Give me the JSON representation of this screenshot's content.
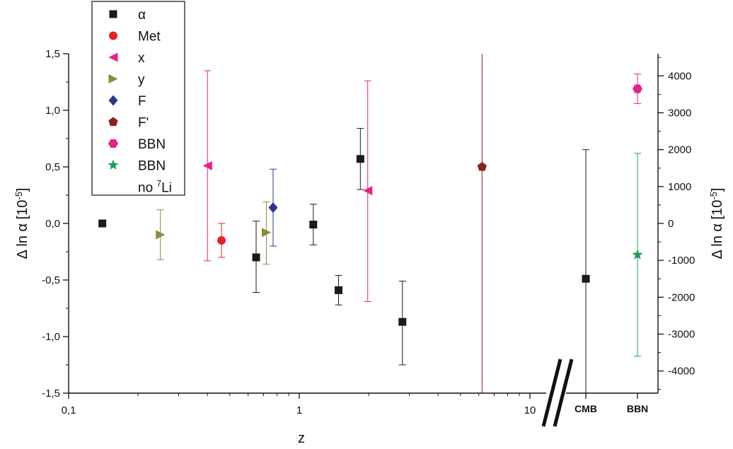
{
  "chart_data": {
    "type": "scatter",
    "xlabel": "z",
    "ylabel_left": "Δ ln α [10",
    "ylabel_left_sup": "-5",
    "ylabel_left_end": "]",
    "ylabel_right": "Δ ln α [10",
    "ylabel_right_sup": "-5",
    "ylabel_right_end": "]",
    "x_scale": "log",
    "xlim": [
      0.1,
      20
    ],
    "x_ticks": [
      {
        "value": 0.1,
        "label": "0,1"
      },
      {
        "value": 1,
        "label": "1"
      },
      {
        "value": 10,
        "label": "10"
      }
    ],
    "x_categories": [
      "CMB",
      "BBN"
    ],
    "ylim_left": [
      -1.5,
      1.5
    ],
    "y_ticks_left": [
      {
        "value": 1.5,
        "label": "1,5"
      },
      {
        "value": 1.0,
        "label": "1,0"
      },
      {
        "value": 0.5,
        "label": "0,5"
      },
      {
        "value": 0.0,
        "label": "0,0"
      },
      {
        "value": -0.5,
        "label": "-0,5"
      },
      {
        "value": -1.0,
        "label": "-1,0"
      },
      {
        "value": -1.5,
        "label": "-1,5"
      }
    ],
    "ylim_right": [
      -4600,
      4600
    ],
    "y_ticks_right": [
      {
        "value": 4000,
        "label": "4000"
      },
      {
        "value": 3000,
        "label": "3000"
      },
      {
        "value": 2000,
        "label": "2000"
      },
      {
        "value": 1000,
        "label": "1000"
      },
      {
        "value": 0,
        "label": "0"
      },
      {
        "value": -1000,
        "label": "-1000"
      },
      {
        "value": -2000,
        "label": "-2000"
      },
      {
        "value": -3000,
        "label": "-3000"
      },
      {
        "value": -4000,
        "label": "-4000"
      }
    ],
    "axis_break": "between 10 and CMB",
    "legend_position": "top-left",
    "series": [
      {
        "name": "α",
        "marker": "square",
        "color": "#1a1a1a",
        "points": [
          {
            "x": 0.14,
            "y": 0.0
          },
          {
            "x": 0.65,
            "y": -0.3,
            "lo": -0.61,
            "hi": 0.02
          },
          {
            "x": 1.15,
            "y": -0.01,
            "lo": -0.19,
            "hi": 0.17
          },
          {
            "x": 1.48,
            "y": -0.59,
            "lo": -0.72,
            "hi": -0.46
          },
          {
            "x": 1.84,
            "y": 0.57,
            "lo": 0.3,
            "hi": 0.84
          },
          {
            "x": 2.8,
            "y": -0.87,
            "lo": -1.25,
            "hi": -0.51
          }
        ]
      },
      {
        "name": "Met",
        "marker": "circle",
        "color": "#e8202a",
        "points": [
          {
            "x": 0.46,
            "y": -0.15,
            "lo": -0.3,
            "hi": 0.0
          }
        ]
      },
      {
        "name": "x",
        "marker": "triangle-left",
        "color": "#e6218a",
        "points": [
          {
            "x": 0.4,
            "y": 0.51,
            "lo": -0.33,
            "hi": 1.35
          },
          {
            "x": 1.98,
            "y": 0.29,
            "lo": -0.69,
            "hi": 1.26
          }
        ]
      },
      {
        "name": "y",
        "marker": "triangle-right",
        "color": "#8d8a3a",
        "points": [
          {
            "x": 0.25,
            "y": -0.1,
            "lo": -0.32,
            "hi": 0.12
          },
          {
            "x": 0.72,
            "y": -0.08,
            "lo": -0.36,
            "hi": 0.19
          }
        ]
      },
      {
        "name": "F",
        "marker": "diamond",
        "color": "#2a3590",
        "points": [
          {
            "x": 0.77,
            "y": 0.14,
            "lo": -0.2,
            "hi": 0.48
          }
        ]
      },
      {
        "name": "F'",
        "marker": "pentagon",
        "color": "#8b2020",
        "points": [
          {
            "x": 6.2,
            "y": 0.5,
            "lo": -1.5,
            "hi": 1.5
          }
        ]
      },
      {
        "name": "BBN",
        "marker": "hexagon",
        "color": "#e6218a",
        "axis": "right",
        "points": [
          {
            "category": "BBN",
            "y": 3650,
            "lo": 3250,
            "hi": 4050
          }
        ]
      },
      {
        "name": "BBN",
        "name_line2": "no ",
        "name_line2_sup": "7",
        "name_line2_end": "Li",
        "marker": "star",
        "color": "#1aa05a",
        "axis": "right",
        "points": [
          {
            "category": "BBN",
            "y": -850,
            "lo": -3600,
            "hi": 1900
          }
        ]
      },
      {
        "name": "",
        "marker": "square",
        "color": "#1a1a1a",
        "axis": "right",
        "points": [
          {
            "category": "CMB",
            "y": -1500,
            "lo": -4600,
            "hi": 2000
          }
        ]
      }
    ]
  }
}
